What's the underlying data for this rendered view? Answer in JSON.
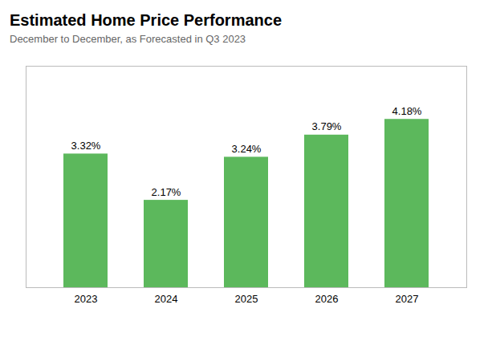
{
  "chart_data": {
    "type": "bar",
    "title": "Estimated Home Price Performance",
    "subtitle": "December to December, as Forecasted in Q3 2023",
    "categories": [
      "2023",
      "2024",
      "2025",
      "2026",
      "2027"
    ],
    "values": [
      3.32,
      2.17,
      3.24,
      3.79,
      4.18
    ],
    "value_labels": [
      "3.32%",
      "2.17%",
      "3.24%",
      "3.79%",
      "4.18%"
    ],
    "data_labels": true,
    "color": "#5cb85c",
    "ylim": [
      0,
      5.5
    ],
    "grid": false,
    "tick_labels": "x"
  }
}
